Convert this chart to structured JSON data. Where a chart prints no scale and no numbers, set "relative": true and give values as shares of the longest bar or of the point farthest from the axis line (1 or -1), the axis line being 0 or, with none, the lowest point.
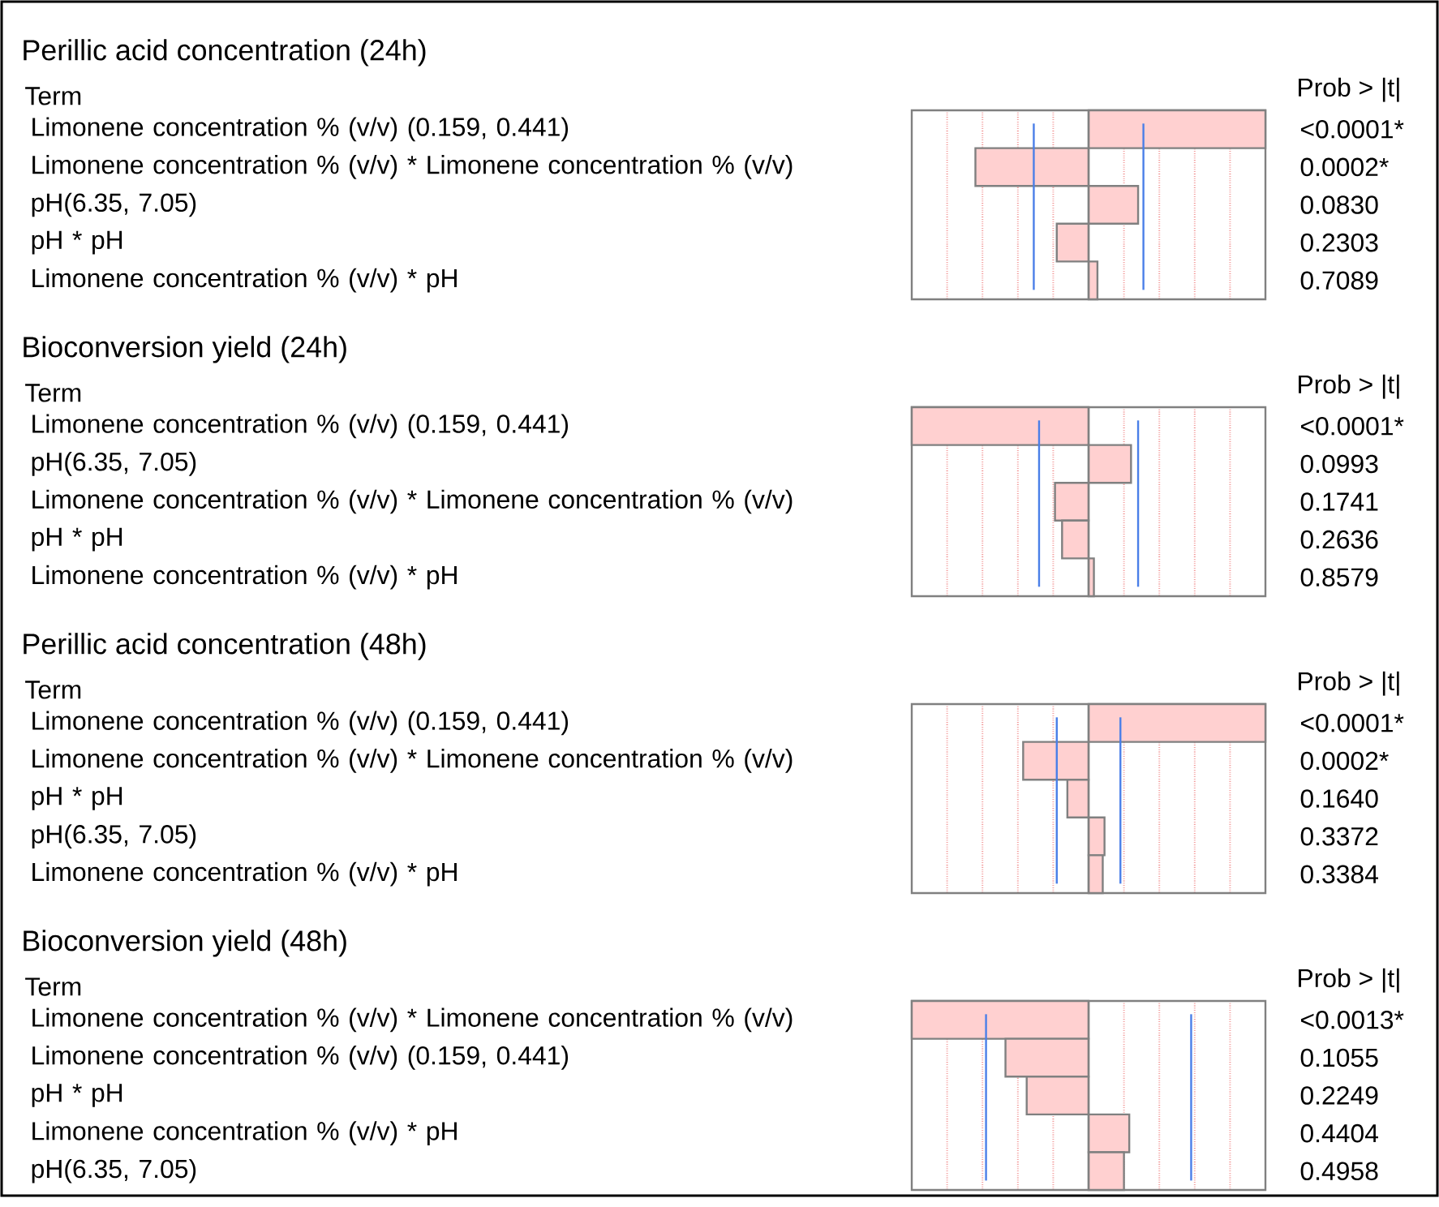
{
  "chart_data": [
    {
      "type": "bar",
      "orientation": "horizontal",
      "relative": true,
      "title": "Perillic acid concentration (24h)",
      "ylabel": "Term",
      "y2label": "Prob > |t|",
      "categories": [
        "Limonene concentration % (v/v) (0.159, 0.441)",
        "Limonene concentration % (v/v) * Limonene concentration % (v/v)",
        "pH(6.35, 7.05)",
        "pH * pH",
        "Limonene concentration % (v/v) * pH"
      ],
      "values": [
        1,
        -0.64,
        0.28,
        -0.18,
        0.05
      ],
      "color": "#ffd0d0",
      "annotations": [
        "<0.0001*",
        "0.0002*",
        "0.0830",
        "0.2303",
        "0.7089"
      ],
      "ref_lines": [
        {
          "axis": "x",
          "value": -0.31,
          "color": "#4a7fe8"
        },
        {
          "axis": "x",
          "value": 0.31,
          "color": "#4a7fe8"
        }
      ],
      "grid": "x",
      "tick_labels": "y"
    },
    {
      "type": "bar",
      "orientation": "horizontal",
      "relative": true,
      "title": "Bioconversion yield (24h)",
      "ylabel": "Term",
      "y2label": "Prob > |t|",
      "categories": [
        "Limonene concentration % (v/v) (0.159, 0.441)",
        "pH(6.35, 7.05)",
        "Limonene concentration % (v/v) * Limonene concentration % (v/v)",
        "pH * pH",
        "Limonene concentration % (v/v) * pH"
      ],
      "values": [
        -1,
        0.24,
        -0.19,
        -0.15,
        0.03
      ],
      "color": "#ffd0d0",
      "annotations": [
        "<0.0001*",
        "0.0993",
        "0.1741",
        "0.2636",
        "0.8579"
      ],
      "ref_lines": [
        {
          "axis": "x",
          "value": -0.28,
          "color": "#4a7fe8"
        },
        {
          "axis": "x",
          "value": 0.28,
          "color": "#4a7fe8"
        }
      ],
      "grid": "x",
      "tick_labels": "y"
    },
    {
      "type": "bar",
      "orientation": "horizontal",
      "relative": true,
      "title": "Perillic acid concentration (48h)",
      "ylabel": "Term",
      "y2label": "Prob > |t|",
      "categories": [
        "Limonene concentration % (v/v) (0.159, 0.441)",
        "Limonene concentration % (v/v) * Limonene concentration % (v/v)",
        "pH * pH",
        "pH(6.35, 7.05)",
        "Limonene concentration % (v/v) * pH"
      ],
      "values": [
        1,
        -0.37,
        -0.12,
        0.09,
        0.08
      ],
      "color": "#ffd0d0",
      "annotations": [
        "<0.0001*",
        "0.0002*",
        "0.1640",
        "0.3372",
        "0.3384"
      ],
      "ref_lines": [
        {
          "axis": "x",
          "value": -0.18,
          "color": "#4a7fe8"
        },
        {
          "axis": "x",
          "value": 0.18,
          "color": "#4a7fe8"
        }
      ],
      "grid": "x",
      "tick_labels": "y"
    },
    {
      "type": "bar",
      "orientation": "horizontal",
      "relative": true,
      "title": "Bioconversion yield (48h)",
      "ylabel": "Term",
      "y2label": "Prob > |t|",
      "categories": [
        "Limonene concentration % (v/v) * Limonene concentration % (v/v)",
        "Limonene concentration % (v/v) (0.159, 0.441)",
        "pH * pH",
        "Limonene concentration % (v/v) * pH",
        "pH(6.35, 7.05)"
      ],
      "values": [
        -1,
        -0.47,
        -0.35,
        0.23,
        0.2
      ],
      "color": "#ffd0d0",
      "annotations": [
        "<0.0013*",
        "0.1055",
        "0.2249",
        "0.4404",
        "0.4958"
      ],
      "ref_lines": [
        {
          "axis": "x",
          "value": -0.58,
          "color": "#4a7fe8"
        },
        {
          "axis": "x",
          "value": 0.58,
          "color": "#4a7fe8"
        }
      ],
      "grid": "x",
      "tick_labels": "y"
    }
  ]
}
